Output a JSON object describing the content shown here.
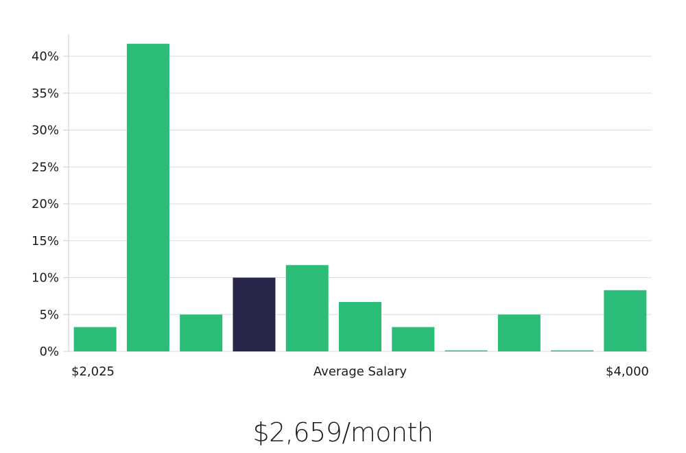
{
  "chart_data": {
    "type": "bar",
    "x_start_label": "$2,025",
    "x_center_label": "Average Salary",
    "x_end_label": "$4,000",
    "y_ticks": [
      "0%",
      "5%",
      "10%",
      "15%",
      "20%",
      "25%",
      "30%",
      "35%",
      "40%"
    ],
    "ylim": [
      0,
      43
    ],
    "grid": true,
    "values": [
      3.3,
      41.7,
      5.0,
      10.0,
      11.7,
      6.7,
      3.3,
      0,
      5.0,
      0,
      8.3
    ],
    "highlight_index": 3,
    "colors": {
      "bar": "#2bbd77",
      "highlight": "#28264a",
      "grid": "#dddddd",
      "axis": "#cccccc"
    }
  },
  "summary": {
    "salary": "$2,659/month"
  }
}
